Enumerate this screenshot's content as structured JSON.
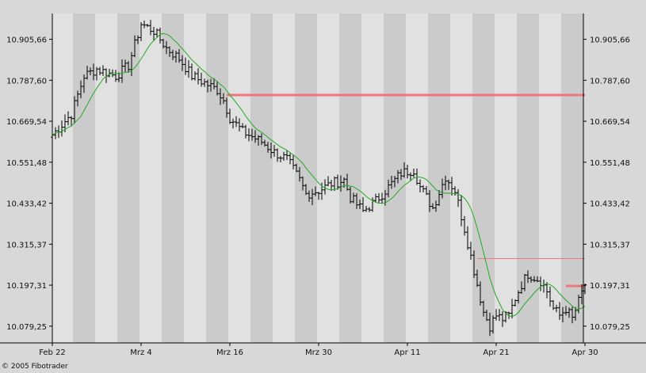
{
  "footer": {
    "credit": "© 2005 Fibotrader"
  },
  "chart_data": {
    "type": "candlestick",
    "title": "",
    "xlabel": "",
    "ylabel": "",
    "grid": false,
    "legend": "none",
    "colors": {
      "background": "#e1e1e1",
      "band": "#cbcbcb",
      "outer": "#d8d8d8",
      "candle": "#000000",
      "ma": "#22aa22",
      "level": "#ee7777"
    },
    "x_ticks": [
      {
        "label": "Feb 22",
        "bar": 0
      },
      {
        "label": "Mrz 4",
        "bar": 28
      },
      {
        "label": "Mrz 16",
        "bar": 56
      },
      {
        "label": "Mrz 30",
        "bar": 84
      },
      {
        "label": "Apr 11",
        "bar": 112
      },
      {
        "label": "Apr 21",
        "bar": 140
      },
      {
        "label": "Apr 30",
        "bar": 168
      }
    ],
    "y_ticks": [
      "10.905,66",
      "10.787,60",
      "10.669,54",
      "10.551,48",
      "10.433,42",
      "10.315,37",
      "10.197,31",
      "10.079,25"
    ],
    "ylim": [
      10031,
      10980
    ],
    "bar_count": 169,
    "price_path": [
      [
        0,
        10630
      ],
      [
        6,
        10690
      ],
      [
        10,
        10800
      ],
      [
        14,
        10820
      ],
      [
        20,
        10800
      ],
      [
        24,
        10830
      ],
      [
        28,
        10950
      ],
      [
        32,
        10930
      ],
      [
        36,
        10880
      ],
      [
        40,
        10850
      ],
      [
        44,
        10800
      ],
      [
        48,
        10780
      ],
      [
        52,
        10760
      ],
      [
        54,
        10730
      ],
      [
        56,
        10680
      ],
      [
        60,
        10640
      ],
      [
        66,
        10610
      ],
      [
        70,
        10580
      ],
      [
        74,
        10560
      ],
      [
        78,
        10500
      ],
      [
        80,
        10460
      ],
      [
        84,
        10470
      ],
      [
        88,
        10490
      ],
      [
        92,
        10500
      ],
      [
        94,
        10450
      ],
      [
        98,
        10410
      ],
      [
        102,
        10440
      ],
      [
        106,
        10480
      ],
      [
        110,
        10520
      ],
      [
        114,
        10530
      ],
      [
        116,
        10480
      ],
      [
        120,
        10420
      ],
      [
        124,
        10510
      ],
      [
        127,
        10470
      ],
      [
        130,
        10360
      ],
      [
        134,
        10200
      ],
      [
        136,
        10120
      ],
      [
        138,
        10080
      ],
      [
        140,
        10110
      ],
      [
        142,
        10100
      ],
      [
        144,
        10110
      ],
      [
        146,
        10160
      ],
      [
        148,
        10200
      ],
      [
        150,
        10230
      ],
      [
        154,
        10210
      ],
      [
        156,
        10180
      ],
      [
        158,
        10130
      ],
      [
        160,
        10110
      ],
      [
        162,
        10130
      ],
      [
        164,
        10100
      ],
      [
        166,
        10150
      ],
      [
        168,
        10200
      ]
    ],
    "ma_period": 10,
    "levels": [
      {
        "value": 10745,
        "from_bar": 55,
        "to_bar": 168,
        "width": 3
      },
      {
        "value": 10274,
        "from_bar": 134,
        "to_bar": 168,
        "width": 1
      },
      {
        "value": 10195,
        "from_bar": 162,
        "to_bar": 168,
        "width": 3
      }
    ]
  }
}
